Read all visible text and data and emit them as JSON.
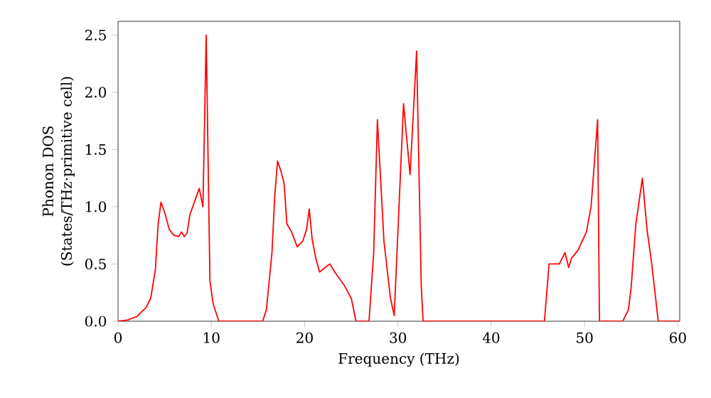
{
  "chart_data": {
    "type": "line",
    "xlabel": "Frequency (THz)",
    "ylabel": "Phonon DOS\n(States/THz·primitive cell)",
    "xlim": [
      0,
      60.2
    ],
    "ylim": [
      0,
      2.62
    ],
    "xticks": [
      0,
      10,
      20,
      30,
      40,
      50,
      60
    ],
    "yticks": [
      {
        "value": 0,
        "label": "0.0"
      },
      0.5,
      {
        "value": 1,
        "label": "1.0"
      },
      1.5,
      {
        "value": 2,
        "label": "2.0"
      },
      2.5
    ],
    "grid": false,
    "series": [
      {
        "color": "#ff0000",
        "x": [
          0,
          1,
          2,
          3,
          3.5,
          4,
          4.3,
          4.6,
          5,
          5.5,
          6,
          6.5,
          6.8,
          7.1,
          7.4,
          7.7,
          8.7,
          9.1,
          9.45,
          9.85,
          10.2,
          10.8,
          15.5,
          15.9,
          16.5,
          16.8,
          17.1,
          17.5,
          17.8,
          18.1,
          18.6,
          19.2,
          19.8,
          20.2,
          20.5,
          20.8,
          21.2,
          21.6,
          22.2,
          22.7,
          23.3,
          24.2,
          25.0,
          25.5,
          26.9,
          27.4,
          27.8,
          28.5,
          29.2,
          29.6,
          30.6,
          31.3,
          32.0,
          32.5,
          32.7,
          45.7,
          46.2,
          47.3,
          47.9,
          48.3,
          48.6,
          49.3,
          50.2,
          50.7,
          51.4,
          51.6,
          54.1,
          54.7,
          55.0,
          55.5,
          56.2,
          56.7,
          57.2,
          57.9,
          60.2
        ],
        "values": [
          0,
          0.01,
          0.04,
          0.12,
          0.2,
          0.45,
          0.85,
          1.04,
          0.95,
          0.8,
          0.75,
          0.74,
          0.78,
          0.74,
          0.77,
          0.93,
          1.16,
          1.0,
          2.5,
          0.35,
          0.15,
          0,
          0,
          0.1,
          0.6,
          1.1,
          1.4,
          1.3,
          1.2,
          0.85,
          0.78,
          0.65,
          0.7,
          0.8,
          0.98,
          0.72,
          0.55,
          0.43,
          0.47,
          0.5,
          0.42,
          0.32,
          0.2,
          0,
          0,
          0.6,
          1.76,
          0.7,
          0.2,
          0.05,
          1.9,
          1.28,
          2.36,
          0.3,
          0,
          0,
          0.5,
          0.5,
          0.6,
          0.47,
          0.55,
          0.62,
          0.78,
          1.0,
          1.76,
          0,
          0,
          0.1,
          0.3,
          0.85,
          1.25,
          0.8,
          0.5,
          0,
          0
        ]
      }
    ]
  }
}
